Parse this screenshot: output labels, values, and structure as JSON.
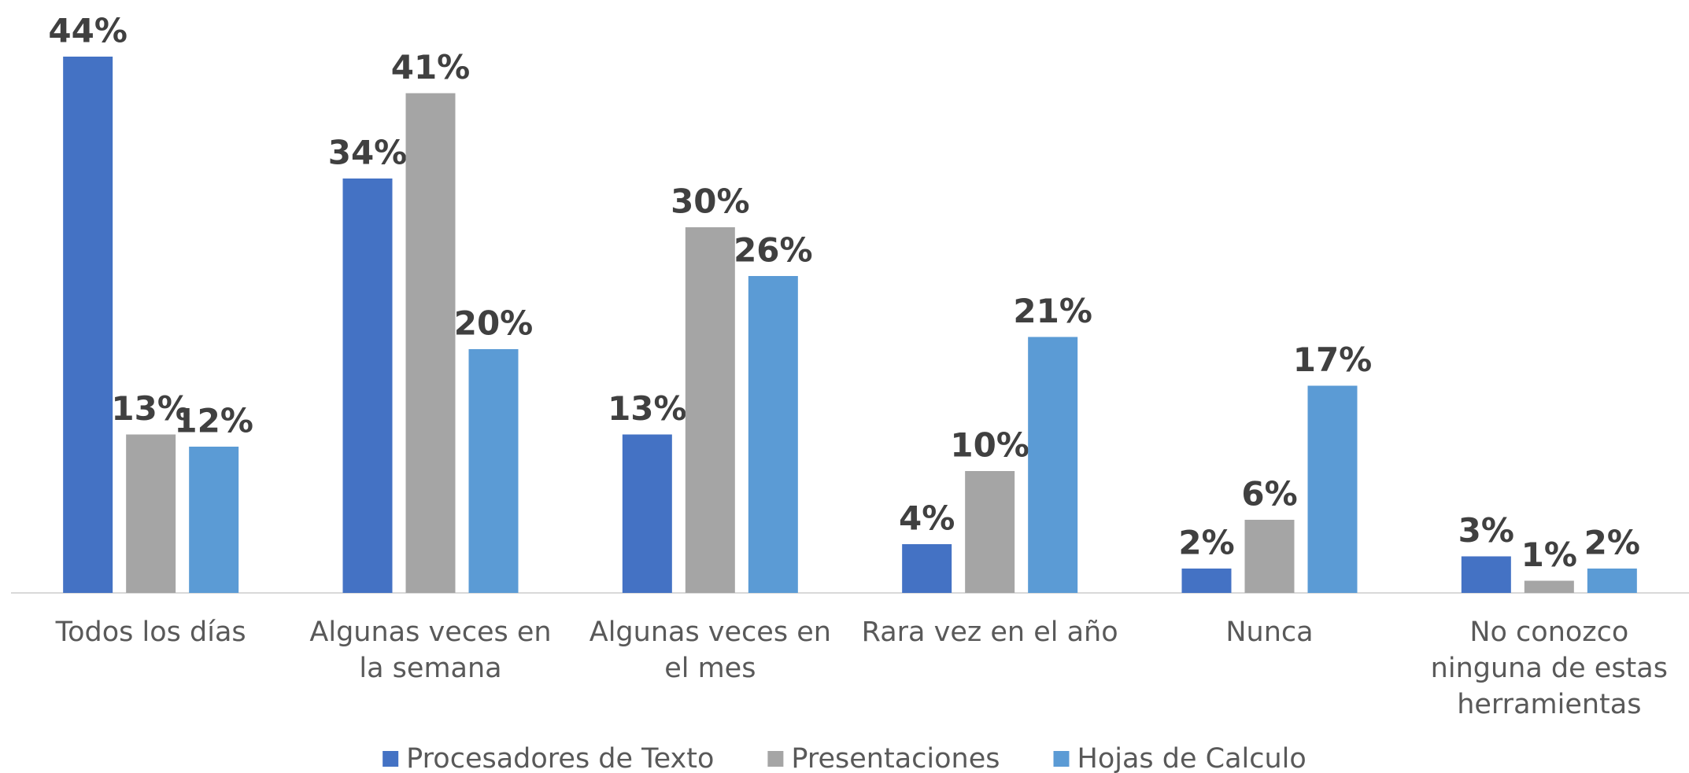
{
  "chart_data": {
    "type": "bar",
    "categories": [
      "Todos los días",
      "Algunas veces en la semana",
      "Algunas veces en el mes",
      "Rara vez en el año",
      "Nunca",
      "No conozco ninguna de estas herramientas"
    ],
    "series": [
      {
        "name": "Procesadores de Texto",
        "color": "#4472c4",
        "values": [
          44,
          34,
          13,
          4,
          2,
          3
        ],
        "value_labels": [
          "44%",
          "34%",
          "13%",
          "4%",
          "2%",
          "3%"
        ]
      },
      {
        "name": "Presentaciones",
        "color": "#a5a5a5",
        "values": [
          13,
          41,
          30,
          10,
          6,
          1
        ],
        "value_labels": [
          "13%",
          "41%",
          "30%",
          "10%",
          "6%",
          "1%"
        ]
      },
      {
        "name": "Hojas de Calculo",
        "color": "#5b9bd5",
        "values": [
          12,
          20,
          26,
          21,
          17,
          2
        ],
        "value_labels": [
          "12%",
          "20%",
          "26%",
          "21%",
          "17%",
          "2%"
        ]
      }
    ],
    "legend": "bottom"
  }
}
